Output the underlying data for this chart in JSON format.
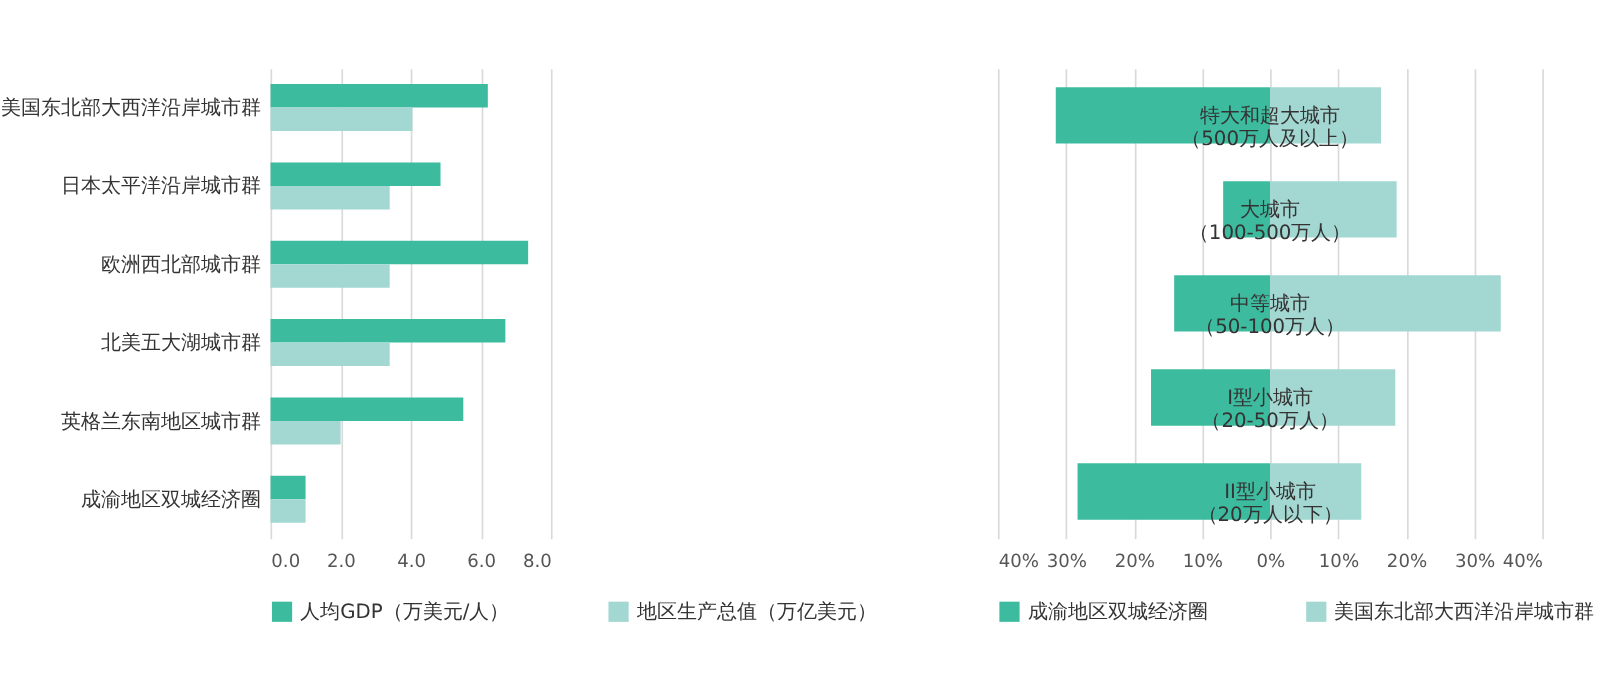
{
  "chart_data": [
    {
      "type": "bar",
      "orientation": "horizontal",
      "categories": [
        "美国东北部大西洋沿岸城市群",
        "日本太平洋沿岸城市群",
        "欧洲西北部城市群",
        "北美五大湖城市群",
        "英格兰东南地区城市群",
        "成渝地区双城经济圈"
      ],
      "series": [
        {
          "name": "人均GDP（万美元/人）",
          "color": "#3dbb9f",
          "values": [
            6.2,
            4.85,
            7.35,
            6.7,
            5.5,
            1.0
          ]
        },
        {
          "name": "地区生产总值（万亿美元）",
          "color": "#a3d7d1",
          "values": [
            4.05,
            3.4,
            3.4,
            3.4,
            2.0,
            1.0
          ]
        }
      ],
      "xlim": [
        0,
        8
      ],
      "xticks": [
        {
          "value": 0,
          "label": "0.0"
        },
        {
          "value": 2,
          "label": "2.0"
        },
        {
          "value": 4,
          "label": "4.0"
        },
        {
          "value": 6,
          "label": "6.0"
        },
        {
          "value": 8,
          "label": "8.0"
        }
      ],
      "grid": "x",
      "legend": "bottom"
    },
    {
      "type": "bar",
      "orientation": "horizontal",
      "categories": [
        "特大和超大城市（500万人及以上）",
        "大城市（100-500万人）",
        "中等城市（50-100万人）",
        "I型小城市（20-50万人）",
        "II型小城市（20万人以下）"
      ],
      "stacked": true,
      "series": [
        {
          "name": "成渝地区双城经济圈",
          "color": "#3dbb9f",
          "values": [
            -31.5,
            -6.9,
            -14.1,
            -17.5,
            -28.3
          ]
        },
        {
          "name": "美国东北部大西洋沿岸城市群",
          "color": "#a3d7d1",
          "values": [
            16.3,
            18.6,
            33.9,
            18.4,
            13.4
          ]
        }
      ],
      "xlim": [
        -40,
        40
      ],
      "xticks": [
        {
          "value": -40,
          "label": "40%"
        },
        {
          "value": -30,
          "label": "30%"
        },
        {
          "value": -20,
          "label": "20%"
        },
        {
          "value": -10,
          "label": "10%"
        },
        {
          "value": 0,
          "label": "0%"
        },
        {
          "value": 10,
          "label": "10%"
        },
        {
          "value": 20,
          "label": "20%"
        },
        {
          "value": 30,
          "label": "30%"
        },
        {
          "value": 40,
          "label": "40%"
        }
      ],
      "grid": "x",
      "legend": "bottom",
      "tick_labels": "x"
    }
  ]
}
